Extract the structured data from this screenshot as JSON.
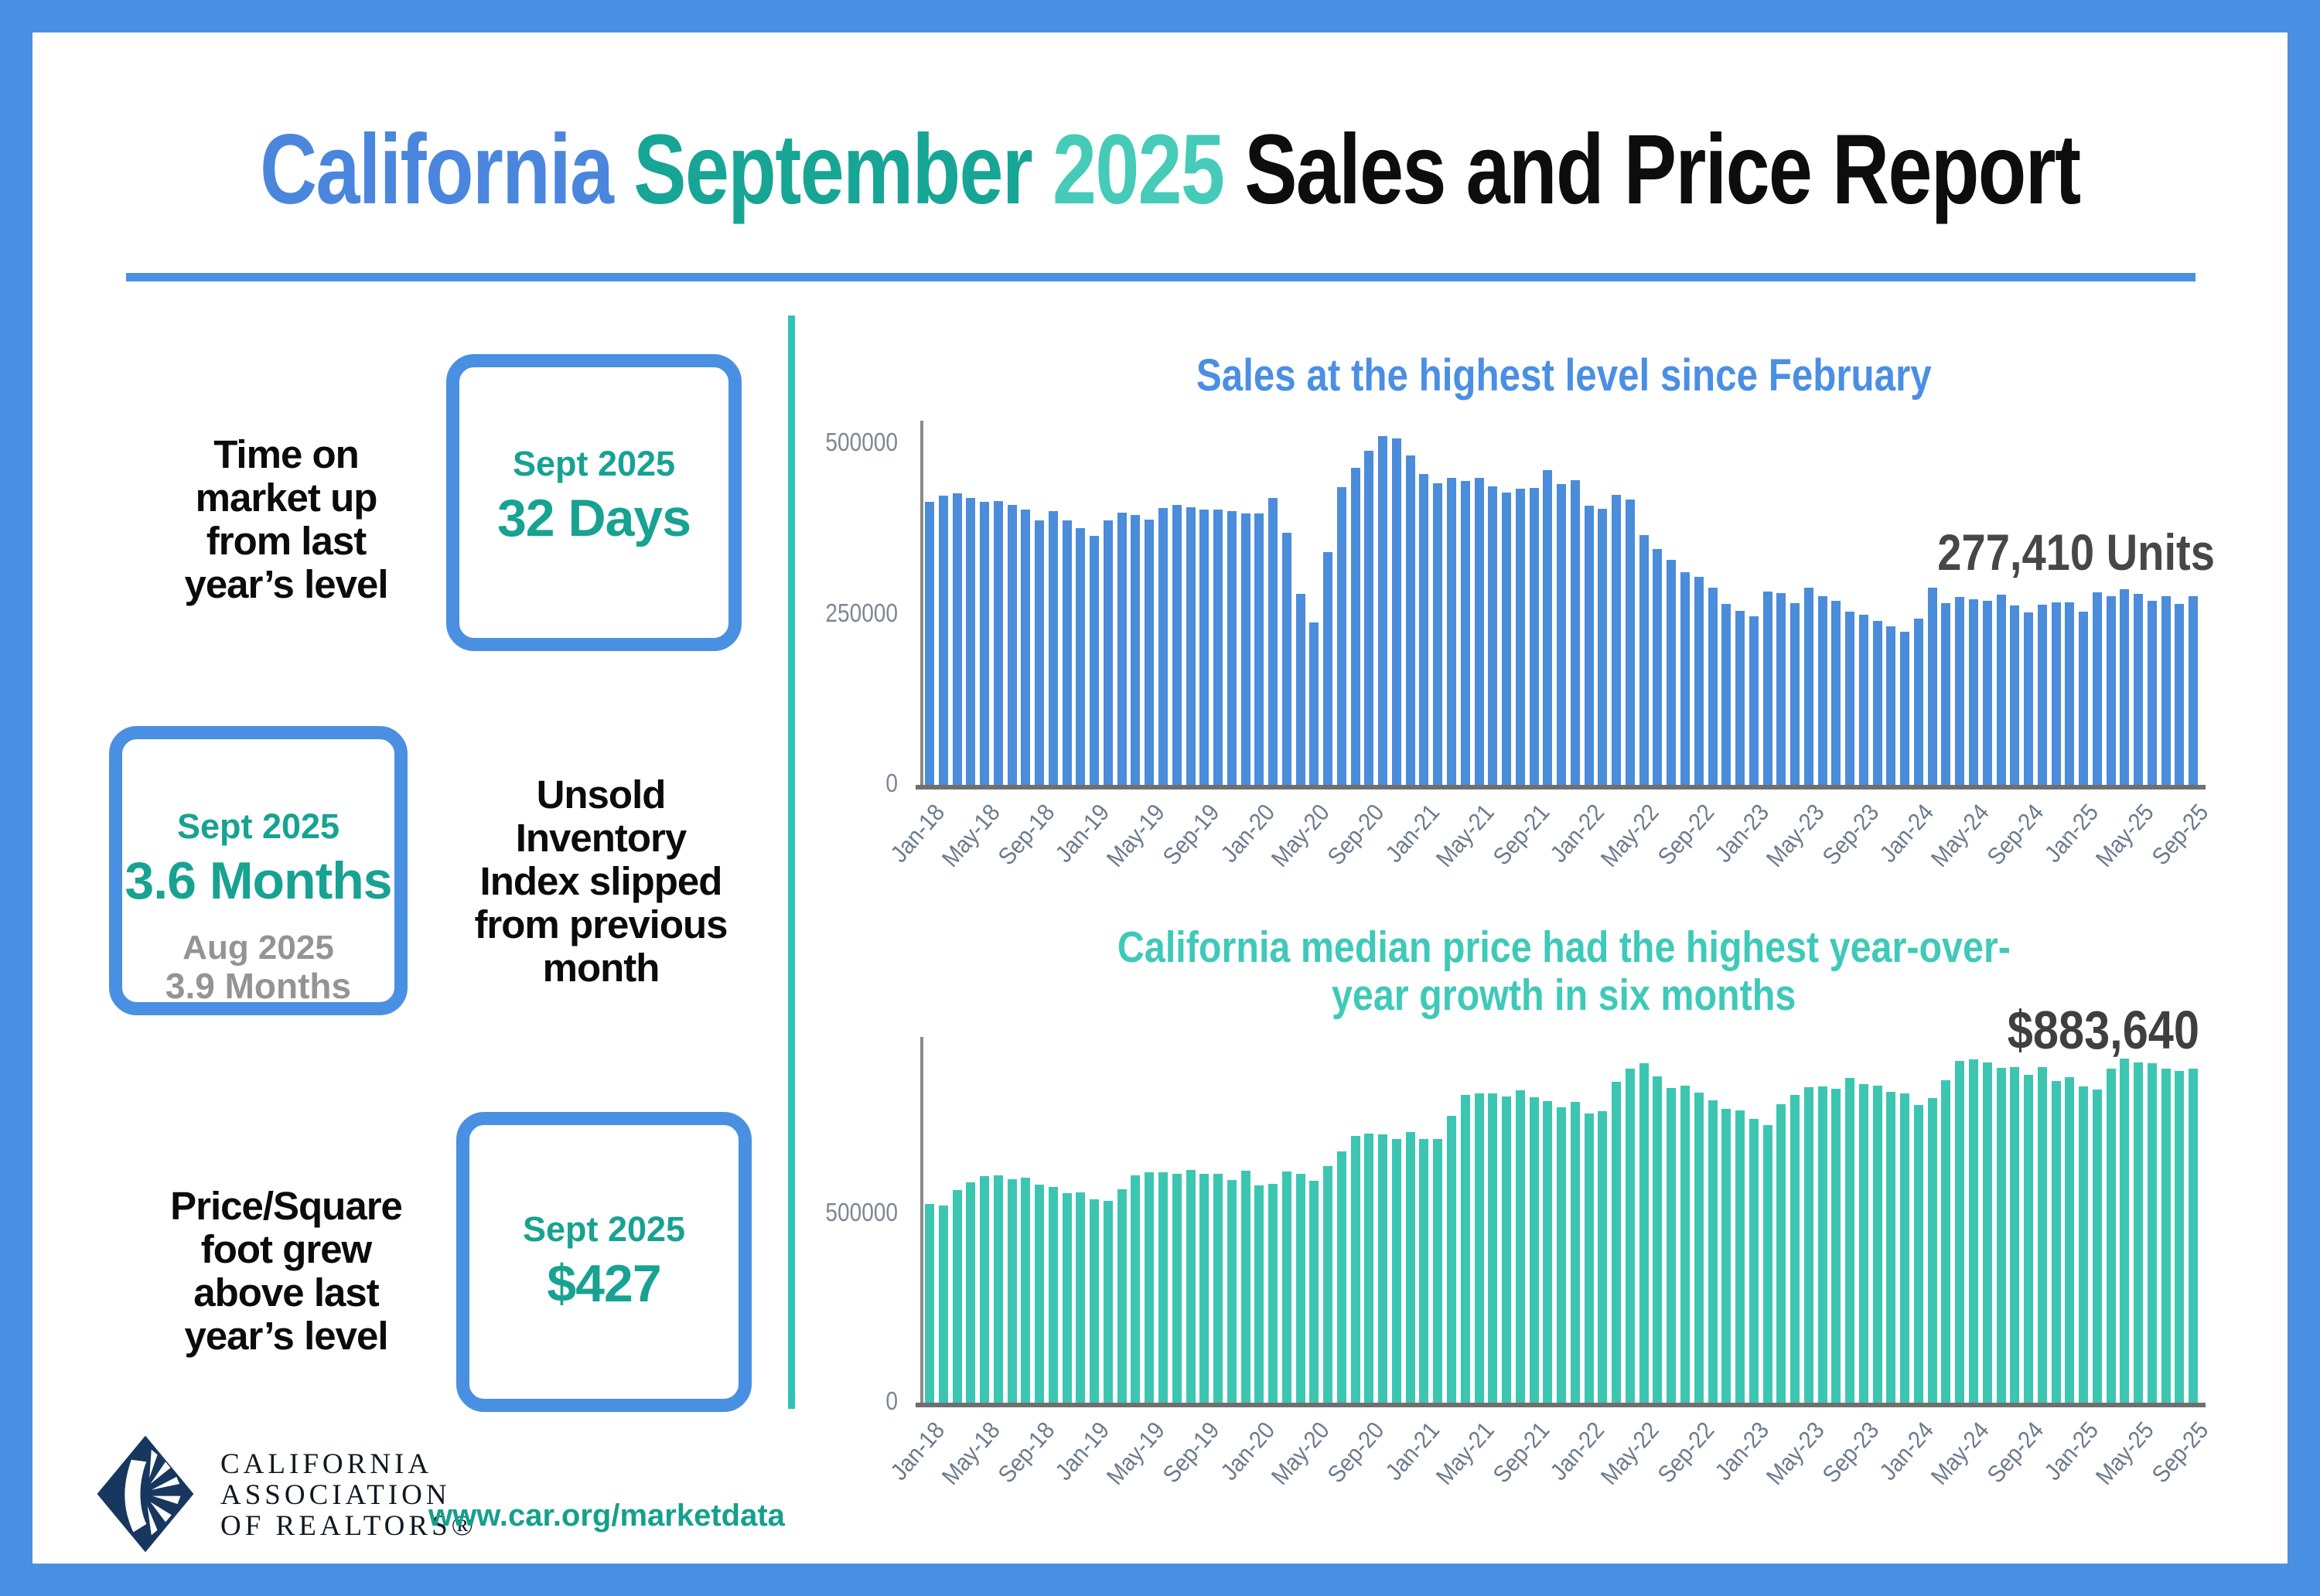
{
  "title": {
    "california": "California",
    "september": "September",
    "year": "2025",
    "rest": "Sales and Price Report"
  },
  "colors": {
    "frame_blue": "#4a90e2",
    "teal_accent": "#17a292",
    "teal_divider": "#2ec4b6",
    "sales_bar_blue": "#4b8cdb",
    "price_bar_teal": "#3cc6b2"
  },
  "stats": [
    {
      "label": "Time on\nmarket up\nfrom last\nyear’s level",
      "period": "Sept 2025",
      "value": "32 Days"
    },
    {
      "period": "Sept 2025",
      "value": "3.6 Months",
      "prev_period": "Aug 2025",
      "prev_value": "3.9 Months",
      "label": "Unsold\nInventory\nIndex slipped\nfrom previous\nmonth"
    },
    {
      "label": "Price/Square\nfoot grew\nabove last\nyear’s level",
      "period": "Sept 2025",
      "value": "$427"
    }
  ],
  "footer": {
    "logo_line1": "CALIFORNIA",
    "logo_line2": "ASSOCIATION",
    "logo_line3": "OF REALTORS®",
    "url": "www.car.org/marketdata"
  },
  "chart_data": [
    {
      "id": "sales",
      "type": "bar",
      "title": "Sales at the highest level since February",
      "title_color": "#4a8fe3",
      "bar_color": "#4b8cdb",
      "annotation": "277,410 Units",
      "annotation_value": 277410,
      "xlabel": "",
      "ylabel": "",
      "ylim": [
        0,
        530000
      ],
      "grid": false,
      "yticks": [
        {
          "value": 0,
          "label": "0"
        },
        {
          "value": 250000,
          "label": "250000"
        },
        {
          "value": 500000,
          "label": "500000"
        }
      ],
      "x_tick_every": 4,
      "x_tick_labels": [
        "Jan-18",
        "May-18",
        "Sep-18",
        "Jan-19",
        "May-19",
        "Sep-19",
        "Jan-20",
        "May-20",
        "Sep-20",
        "Jan-21",
        "May-21",
        "Sep-21",
        "Jan-22",
        "May-22",
        "Sep-22",
        "Jan-23",
        "May-23",
        "Sep-23",
        "Jan-24",
        "May-24",
        "Sep-24",
        "Jan-25",
        "May-25",
        "Sep-25"
      ],
      "categories": [
        "Jan-18",
        "Feb-18",
        "Mar-18",
        "Apr-18",
        "May-18",
        "Jun-18",
        "Jul-18",
        "Aug-18",
        "Sep-18",
        "Oct-18",
        "Nov-18",
        "Dec-18",
        "Jan-19",
        "Feb-19",
        "Mar-19",
        "Apr-19",
        "May-19",
        "Jun-19",
        "Jul-19",
        "Aug-19",
        "Sep-19",
        "Oct-19",
        "Nov-19",
        "Dec-19",
        "Jan-20",
        "Feb-20",
        "Mar-20",
        "Apr-20",
        "May-20",
        "Jun-20",
        "Jul-20",
        "Aug-20",
        "Sep-20",
        "Oct-20",
        "Nov-20",
        "Dec-20",
        "Jan-21",
        "Feb-21",
        "Mar-21",
        "Apr-21",
        "May-21",
        "Jun-21",
        "Jul-21",
        "Aug-21",
        "Sep-21",
        "Oct-21",
        "Nov-21",
        "Dec-21",
        "Jan-22",
        "Feb-22",
        "Mar-22",
        "Apr-22",
        "May-22",
        "Jun-22",
        "Jul-22",
        "Aug-22",
        "Sep-22",
        "Oct-22",
        "Nov-22",
        "Dec-22",
        "Jan-23",
        "Feb-23",
        "Mar-23",
        "Apr-23",
        "May-23",
        "Jun-23",
        "Jul-23",
        "Aug-23",
        "Sep-23",
        "Oct-23",
        "Nov-23",
        "Dec-23",
        "Jan-24",
        "Feb-24",
        "Mar-24",
        "Apr-24",
        "May-24",
        "Jun-24",
        "Jul-24",
        "Aug-24",
        "Sep-24",
        "Oct-24",
        "Nov-24",
        "Dec-24",
        "Jan-25",
        "Feb-25",
        "Mar-25",
        "Apr-25",
        "May-25",
        "Jun-25",
        "Jul-25",
        "Aug-25",
        "Sep-25"
      ],
      "values": [
        415000,
        424000,
        428000,
        421000,
        415000,
        416000,
        411000,
        404000,
        388000,
        402000,
        388000,
        377000,
        365000,
        388000,
        400000,
        396000,
        389000,
        406000,
        411000,
        407000,
        404000,
        404000,
        402000,
        398000,
        398000,
        421000,
        370000,
        280000,
        238000,
        342000,
        437000,
        465000,
        490000,
        512000,
        508000,
        484000,
        456000,
        443000,
        451000,
        446000,
        451000,
        438000,
        429000,
        435000,
        436000,
        462000,
        441000,
        447000,
        410000,
        405000,
        426000,
        419000,
        367000,
        346000,
        330000,
        312000,
        305000,
        290000,
        266000,
        255000,
        248000,
        284000,
        281000,
        267000,
        290000,
        277000,
        270000,
        254000,
        250000,
        241000,
        233000,
        225000,
        244000,
        290000,
        267000,
        276000,
        272000,
        270000,
        279000,
        263000,
        253000,
        264000,
        268000,
        268000,
        254000,
        283000,
        277000,
        287000,
        280000,
        270000,
        277000,
        266000,
        277410
      ]
    },
    {
      "id": "median-price",
      "type": "bar",
      "title": "California median price had the highest year-over-year growth in six months",
      "title_lines": [
        "California median price had the highest year-over-",
        "year growth in six months"
      ],
      "title_color": "#3fc9b8",
      "bar_color": "#3cc6b2",
      "annotation": "$883,640",
      "annotation_value": 883640,
      "xlabel": "",
      "ylabel": "",
      "ylim": [
        0,
        960000
      ],
      "grid": false,
      "yticks": [
        {
          "value": 0,
          "label": "0"
        },
        {
          "value": 500000,
          "label": "500000"
        }
      ],
      "x_tick_every": 4,
      "x_tick_labels": [
        "Jan-18",
        "May-18",
        "Sep-18",
        "Jan-19",
        "May-19",
        "Sep-19",
        "Jan-20",
        "May-20",
        "Sep-20",
        "Jan-21",
        "May-21",
        "Sep-21",
        "Jan-22",
        "May-22",
        "Sep-22",
        "Jan-23",
        "May-23",
        "Sep-23",
        "Jan-24",
        "May-24",
        "Sep-24",
        "Jan-25",
        "May-25",
        "Sep-25"
      ],
      "categories": [
        "Jan-18",
        "Feb-18",
        "Mar-18",
        "Apr-18",
        "May-18",
        "Jun-18",
        "Jul-18",
        "Aug-18",
        "Sep-18",
        "Oct-18",
        "Nov-18",
        "Dec-18",
        "Jan-19",
        "Feb-19",
        "Mar-19",
        "Apr-19",
        "May-19",
        "Jun-19",
        "Jul-19",
        "Aug-19",
        "Sep-19",
        "Oct-19",
        "Nov-19",
        "Dec-19",
        "Jan-20",
        "Feb-20",
        "Mar-20",
        "Apr-20",
        "May-20",
        "Jun-20",
        "Jul-20",
        "Aug-20",
        "Sep-20",
        "Oct-20",
        "Nov-20",
        "Dec-20",
        "Jan-21",
        "Feb-21",
        "Mar-21",
        "Apr-21",
        "May-21",
        "Jun-21",
        "Jul-21",
        "Aug-21",
        "Sep-21",
        "Oct-21",
        "Nov-21",
        "Dec-21",
        "Jan-22",
        "Feb-22",
        "Mar-22",
        "Apr-22",
        "May-22",
        "Jun-22",
        "Jul-22",
        "Aug-22",
        "Sep-22",
        "Oct-22",
        "Nov-22",
        "Dec-22",
        "Jan-23",
        "Feb-23",
        "Mar-23",
        "Apr-23",
        "May-23",
        "Jun-23",
        "Jul-23",
        "Aug-23",
        "Sep-23",
        "Oct-23",
        "Nov-23",
        "Dec-23",
        "Jan-24",
        "Feb-24",
        "Mar-24",
        "Apr-24",
        "May-24",
        "Jun-24",
        "Jul-24",
        "Aug-24",
        "Sep-24",
        "Oct-24",
        "Nov-24",
        "Dec-24",
        "Jan-25",
        "Feb-25",
        "Mar-25",
        "Apr-25",
        "May-25",
        "Jun-25",
        "Jul-25",
        "Aug-25",
        "Sep-25"
      ],
      "values": [
        527000,
        522000,
        564000,
        584000,
        600000,
        602000,
        591000,
        596000,
        578000,
        572000,
        554000,
        557000,
        538000,
        534000,
        565000,
        602000,
        611000,
        611000,
        607000,
        617000,
        605000,
        605000,
        589000,
        615000,
        575000,
        579000,
        612000,
        606000,
        588000,
        626000,
        666000,
        707000,
        712000,
        711000,
        699000,
        717000,
        699000,
        699000,
        759000,
        814000,
        819000,
        819000,
        811000,
        827000,
        808000,
        798000,
        782000,
        797000,
        765000,
        771000,
        849000,
        884000,
        898000,
        863000,
        833000,
        839000,
        821000,
        801000,
        777000,
        774000,
        751000,
        735000,
        791000,
        815000,
        836000,
        838000,
        832000,
        859000,
        843000,
        840000,
        822000,
        819000,
        788000,
        806000,
        854000,
        904000,
        908000,
        900000,
        886000,
        888000,
        868000,
        888000,
        852000,
        861000,
        838000,
        829000,
        884000,
        910000,
        900000,
        899000,
        884000,
        879000,
        883640
      ]
    }
  ]
}
